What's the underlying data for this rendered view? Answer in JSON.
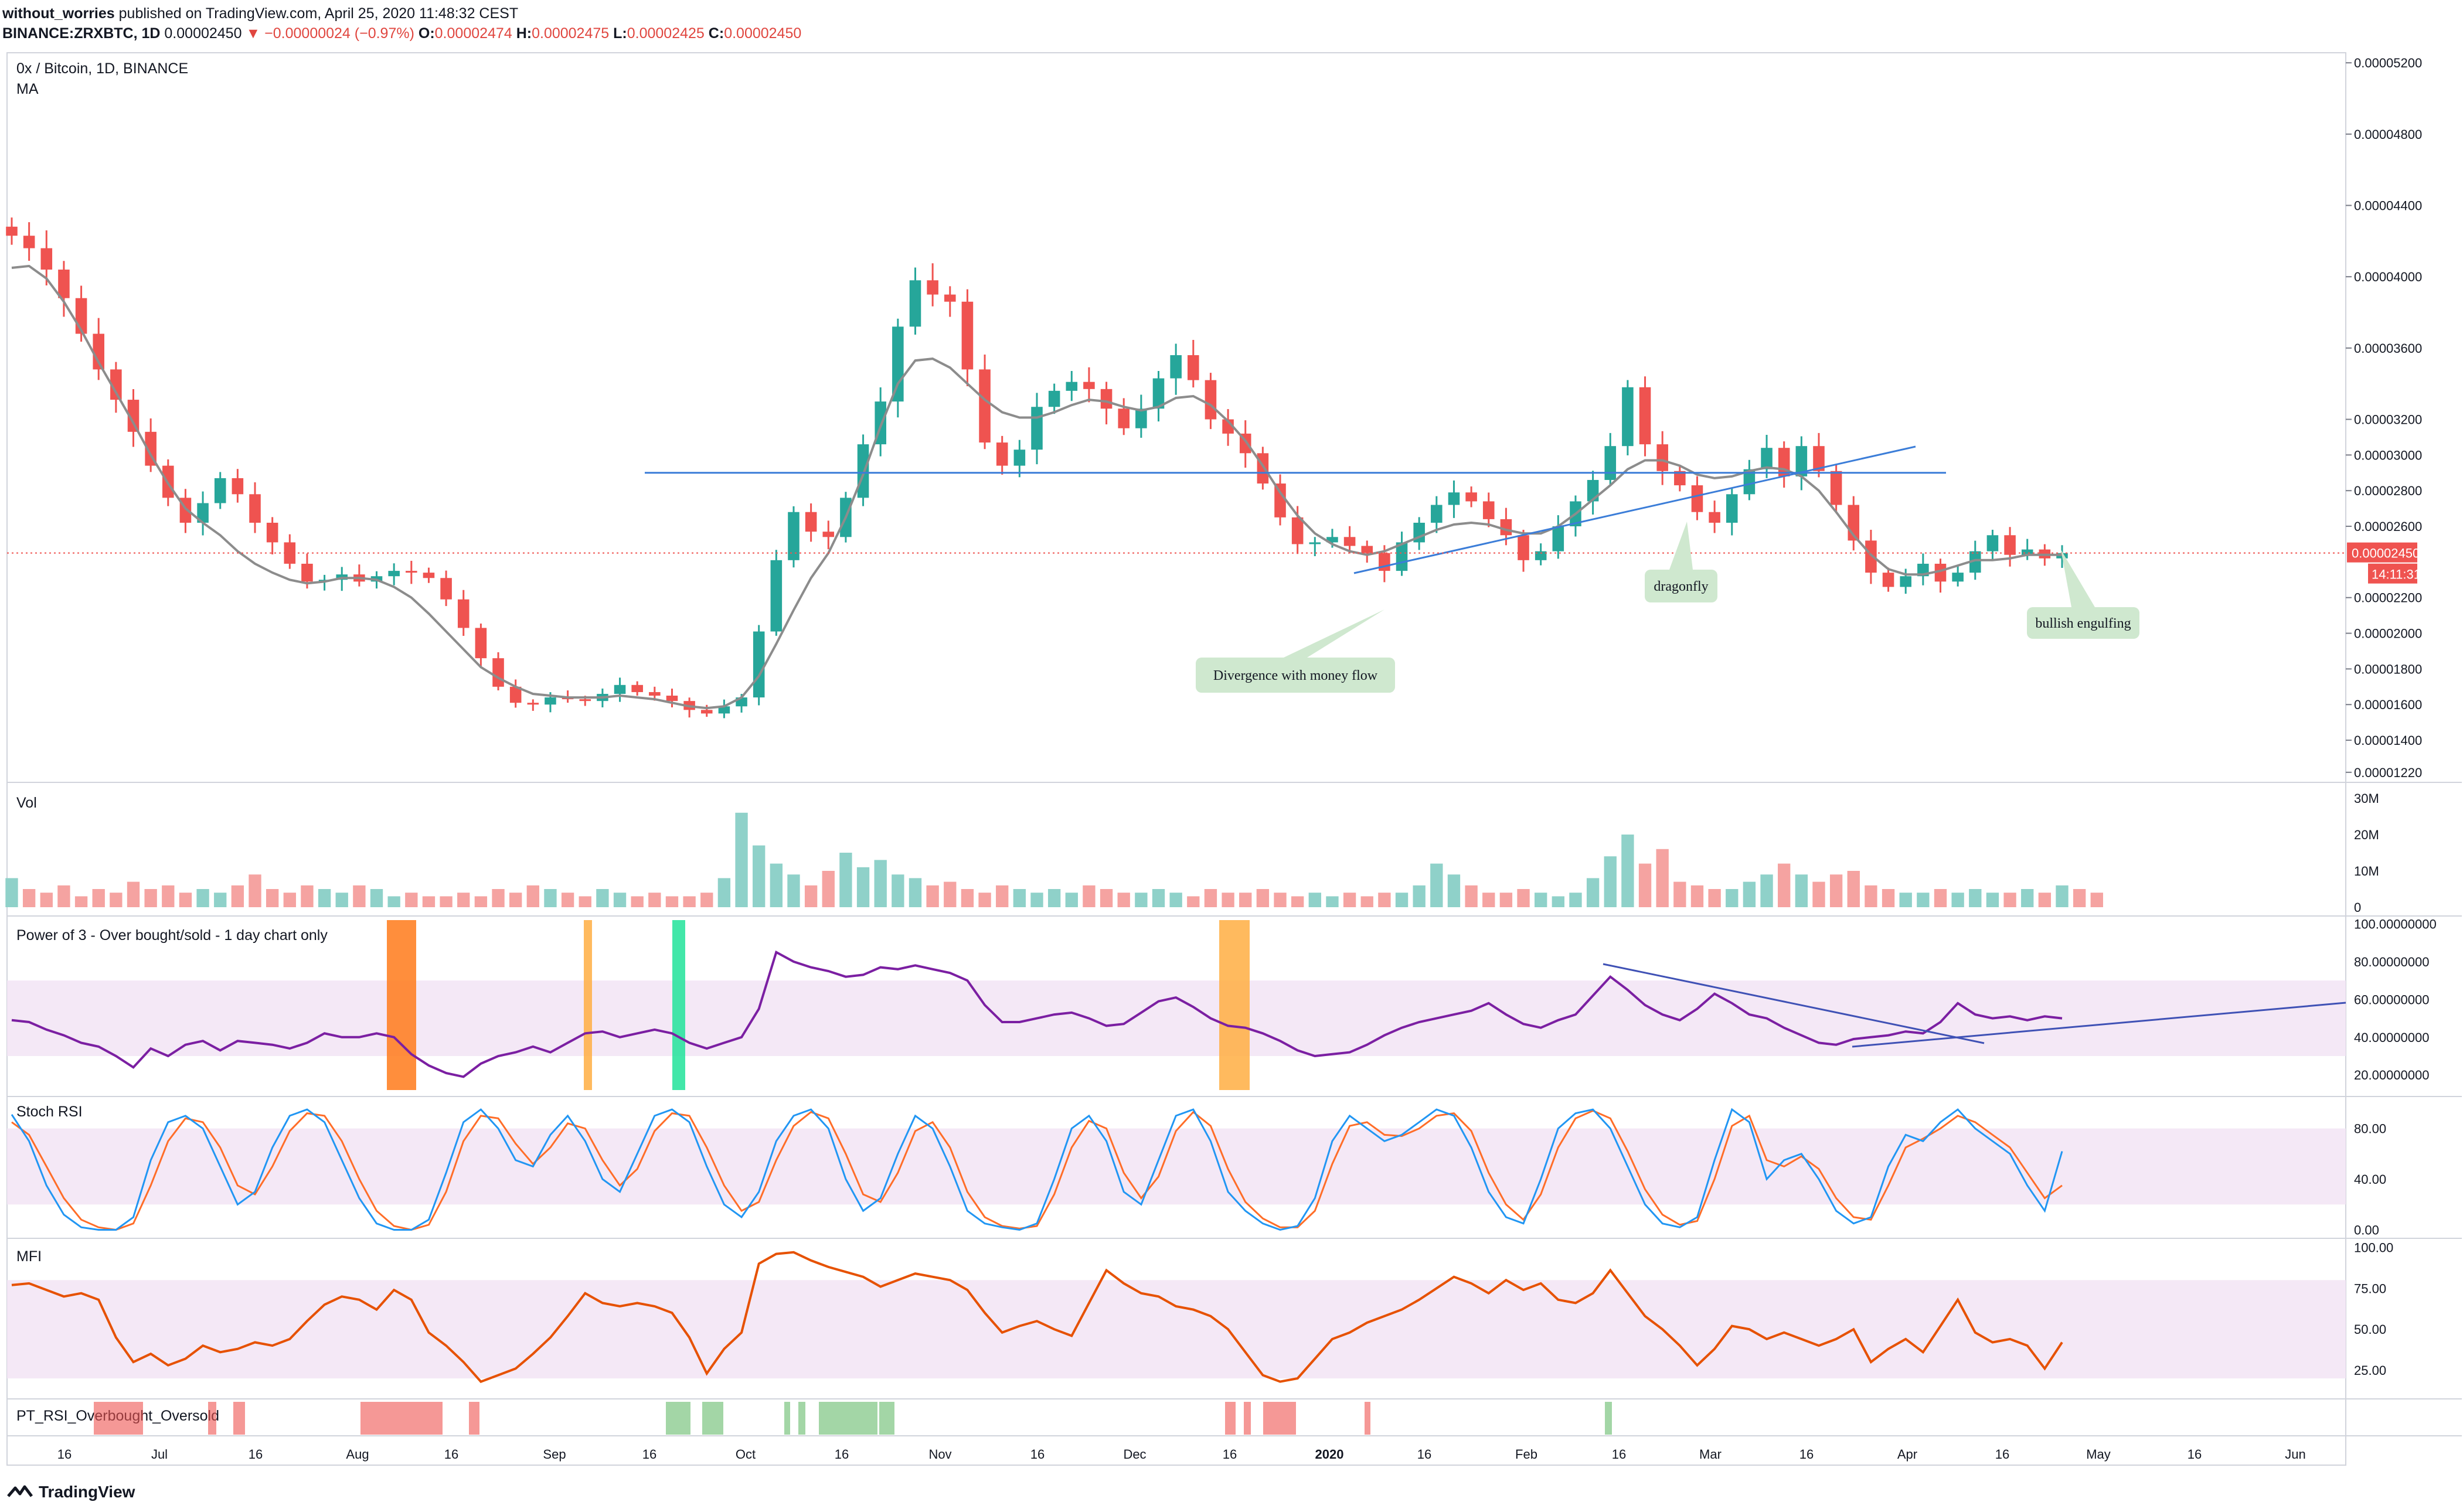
{
  "header": {
    "author": "without_worries",
    "published": "published on TradingView.com, April 25, 2020 11:48:32 CEST",
    "symbol": "BINANCE:ZRXBTC, 1D",
    "last": "0.00002450",
    "change_arrow": "▼",
    "change": "−0.00000024 (−0.97%)",
    "o_label": "O:",
    "o_value": "0.00002474",
    "h_label": "H:",
    "h_value": "0.00002475",
    "l_label": "L:",
    "l_value": "0.00002425",
    "c_label": "C:",
    "c_value": "0.00002450"
  },
  "footer": {
    "brand": "TradingView",
    "logo_icon": "tradingview-logo-icon"
  },
  "panes": {
    "main": {
      "title": "0x / Bitcoin, 1D, BINANCE",
      "subtitle": "MA"
    },
    "volume": {
      "title": "Vol"
    },
    "power3": {
      "title": "Power of 3 - Over bought/sold - 1 day chart only"
    },
    "stoch": {
      "title": "Stoch RSI"
    },
    "mfi": {
      "title": "MFI"
    },
    "pt": {
      "title": "PT_RSI_Overbought_Oversold"
    }
  },
  "colors": {
    "up": "#26a69a",
    "up_soft": "#8fd1c9",
    "down": "#ef5350",
    "down_soft": "#f5a3a1",
    "ma": "#8c8c8c",
    "trend": "#3b7dd8",
    "power": "#7b1fa2",
    "stoch_k": "#2196f3",
    "stoch_d": "#ff6d28",
    "mfi": "#e65100",
    "band": "#f3e5f5",
    "price_line": "#ef5350",
    "annotation_bg": "#cfe8cf"
  },
  "chart_data": [
    {
      "type": "candlestick",
      "pane": "main",
      "indicators": [
        "MA"
      ],
      "ylim": [
        1.18e-05,
        5.24e-05
      ],
      "y_ticks": [
        "0.00005200",
        "0.00004800",
        "0.00004400",
        "0.00004000",
        "0.00003600",
        "0.00003200",
        "0.00003000",
        "0.00002800",
        "0.00002600",
        "0.00002200",
        "0.00002000",
        "0.00001800",
        "0.00001600",
        "0.00001400",
        "0.00001220"
      ],
      "last_price_label": "0.00002450",
      "countdown_label": "14:11:31",
      "x_labels": [
        "16",
        "Jul",
        "16",
        "Aug",
        "16",
        "Sep",
        "16",
        "Oct",
        "16",
        "Nov",
        "16",
        "Dec",
        "16",
        "2020",
        "16",
        "Feb",
        "16",
        "Mar",
        "16",
        "Apr",
        "16",
        "May",
        "16",
        "Jun"
      ],
      "close_series": [
        4.23e-05,
        4.16e-05,
        4.04e-05,
        3.88e-05,
        3.68e-05,
        3.48e-05,
        3.31e-05,
        3.13e-05,
        2.94e-05,
        2.76e-05,
        2.62e-05,
        2.73e-05,
        2.87e-05,
        2.78e-05,
        2.62e-05,
        2.51e-05,
        2.39e-05,
        2.29e-05,
        2.3e-05,
        2.33e-05,
        2.29e-05,
        2.32e-05,
        2.35e-05,
        2.34e-05,
        2.31e-05,
        2.19e-05,
        2.03e-05,
        1.86e-05,
        1.7e-05,
        1.61e-05,
        1.6e-05,
        1.64e-05,
        1.63e-05,
        1.62e-05,
        1.66e-05,
        1.71e-05,
        1.67e-05,
        1.65e-05,
        1.62e-05,
        1.57e-05,
        1.55e-05,
        1.59e-05,
        1.64e-05,
        2.01e-05,
        2.41e-05,
        2.68e-05,
        2.57e-05,
        2.54e-05,
        2.76e-05,
        3.06e-05,
        3.3e-05,
        3.72e-05,
        3.98e-05,
        3.9e-05,
        3.86e-05,
        3.48e-05,
        3.07e-05,
        2.94e-05,
        3.03e-05,
        3.27e-05,
        3.36e-05,
        3.41e-05,
        3.37e-05,
        3.26e-05,
        3.15e-05,
        3.26e-05,
        3.43e-05,
        3.56e-05,
        3.42e-05,
        3.2e-05,
        3.12e-05,
        3.01e-05,
        2.84e-05,
        2.65e-05,
        2.5e-05,
        2.51e-05,
        2.54e-05,
        2.49e-05,
        2.45e-05,
        2.35e-05,
        2.51e-05,
        2.62e-05,
        2.72e-05,
        2.79e-05,
        2.74e-05,
        2.64e-05,
        2.55e-05,
        2.41e-05,
        2.46e-05,
        2.6e-05,
        2.74e-05,
        2.86e-05,
        3.05e-05,
        3.38e-05,
        3.06e-05,
        2.91e-05,
        2.83e-05,
        2.68e-05,
        2.62e-05,
        2.78e-05,
        2.92e-05,
        3.04e-05,
        2.88e-05,
        3.05e-05,
        2.91e-05,
        2.72e-05,
        2.52e-05,
        2.34e-05,
        2.26e-05,
        2.32e-05,
        2.39e-05,
        2.29e-05,
        2.34e-05,
        2.46e-05,
        2.55e-05,
        2.44e-05,
        2.47e-05,
        2.42e-05,
        2.45e-05
      ],
      "ma_series": [
        4.05e-05,
        4.06e-05,
        3.99e-05,
        3.86e-05,
        3.7e-05,
        3.52e-05,
        3.35e-05,
        3.18e-05,
        3e-05,
        2.84e-05,
        2.7e-05,
        2.62e-05,
        2.55e-05,
        2.46e-05,
        2.39e-05,
        2.34e-05,
        2.3e-05,
        2.28e-05,
        2.29e-05,
        2.31e-05,
        2.31e-05,
        2.3e-05,
        2.26e-05,
        2.2e-05,
        2.11e-05,
        2.01e-05,
        1.91e-05,
        1.81e-05,
        1.75e-05,
        1.7e-05,
        1.66e-05,
        1.65e-05,
        1.64e-05,
        1.64e-05,
        1.64e-05,
        1.65e-05,
        1.64e-05,
        1.63e-05,
        1.61e-05,
        1.59e-05,
        1.58e-05,
        1.59e-05,
        1.64e-05,
        1.76e-05,
        1.94e-05,
        2.13e-05,
        2.31e-05,
        2.45e-05,
        2.65e-05,
        2.89e-05,
        3.16e-05,
        3.4e-05,
        3.53e-05,
        3.54e-05,
        3.49e-05,
        3.4e-05,
        3.31e-05,
        3.24e-05,
        3.21e-05,
        3.21e-05,
        3.24e-05,
        3.28e-05,
        3.31e-05,
        3.3e-05,
        3.27e-05,
        3.25e-05,
        3.27e-05,
        3.32e-05,
        3.33e-05,
        3.28e-05,
        3.19e-05,
        3.08e-05,
        2.94e-05,
        2.79e-05,
        2.66e-05,
        2.56e-05,
        2.5e-05,
        2.46e-05,
        2.44e-05,
        2.46e-05,
        2.5e-05,
        2.54e-05,
        2.58e-05,
        2.61e-05,
        2.62e-05,
        2.61e-05,
        2.58e-05,
        2.56e-05,
        2.56e-05,
        2.6e-05,
        2.67e-05,
        2.75e-05,
        2.83e-05,
        2.92e-05,
        2.97e-05,
        2.97e-05,
        2.94e-05,
        2.89e-05,
        2.87e-05,
        2.88e-05,
        2.91e-05,
        2.93e-05,
        2.92e-05,
        2.88e-05,
        2.8e-05,
        2.68e-05,
        2.55e-05,
        2.44e-05,
        2.36e-05,
        2.33e-05,
        2.33e-05,
        2.35e-05,
        2.38e-05,
        2.41e-05,
        2.41e-05,
        2.42e-05,
        2.44e-05,
        2.44e-05,
        2.44e-05
      ],
      "horizontal_level": 2.9e-05,
      "trendline": {
        "from": [
          2.26e-05,
          "Jan"
        ],
        "to": [
          2.94e-05,
          "Apr"
        ]
      },
      "annotations": [
        "Divergence with money flow",
        "dragonfly",
        "bullish engulfing"
      ]
    },
    {
      "type": "bar",
      "pane": "volume",
      "y_ticks": [
        "30M",
        "20M",
        "10M",
        "0"
      ],
      "ylim": [
        0,
        30
      ],
      "values_millions": [
        8,
        5,
        4,
        6,
        3,
        5,
        4,
        7,
        5,
        6,
        4,
        5,
        4,
        6,
        9,
        5,
        4,
        6,
        5,
        4,
        6,
        5,
        3,
        4,
        3,
        3,
        4,
        3,
        5,
        4,
        6,
        5,
        4,
        3,
        5,
        4,
        3,
        4,
        3,
        3,
        4,
        8,
        26,
        17,
        12,
        9,
        6,
        10,
        15,
        11,
        13,
        9,
        8,
        6,
        7,
        5,
        4,
        6,
        5,
        4,
        5,
        4,
        6,
        5,
        4,
        4,
        5,
        4,
        3,
        5,
        4,
        4,
        5,
        4,
        3,
        4,
        3,
        4,
        3,
        4,
        4,
        6,
        12,
        9,
        6,
        4,
        4,
        5,
        4,
        3,
        4,
        8,
        14,
        20,
        12,
        16,
        7,
        6,
        5,
        5,
        7,
        9,
        12,
        9,
        7,
        9,
        10,
        6,
        5,
        4,
        4,
        5,
        4,
        5,
        4,
        4,
        5,
        4,
        6,
        5,
        4
      ]
    },
    {
      "type": "line",
      "pane": "power3",
      "y_ticks": [
        "100.00000000",
        "80.00000000",
        "60.00000000",
        "40.00000000",
        "20.00000000"
      ],
      "ylim": [
        12,
        102
      ],
      "band": [
        30,
        70
      ],
      "values": [
        49,
        48,
        44,
        41,
        37,
        35,
        30,
        24,
        34,
        30,
        36,
        38,
        33,
        38,
        37,
        36,
        34,
        37,
        42,
        40,
        40,
        42,
        40,
        31,
        25,
        21,
        19,
        26,
        30,
        32,
        35,
        32,
        37,
        42,
        43,
        40,
        42,
        44,
        42,
        37,
        34,
        37,
        40,
        55,
        85,
        80,
        77,
        75,
        72,
        73,
        77,
        76,
        78,
        76,
        74,
        70,
        57,
        48,
        48,
        50,
        52,
        53,
        50,
        46,
        47,
        53,
        59,
        61,
        56,
        50,
        46,
        45,
        42,
        38,
        33,
        30,
        31,
        32,
        36,
        41,
        45,
        48,
        50,
        52,
        54,
        58,
        52,
        47,
        45,
        49,
        52,
        62,
        72,
        65,
        57,
        52,
        49,
        55,
        63,
        58,
        52,
        50,
        45,
        41,
        37,
        36,
        39,
        40,
        41,
        43,
        42,
        48,
        58,
        52,
        50,
        51,
        49,
        51,
        50
      ],
      "shaded_columns": [
        "Aug (orange)",
        "Sep (orange)",
        "Sep end (green)",
        "mid-Dec (orange)"
      ]
    },
    {
      "type": "line",
      "pane": "stoch",
      "y_ticks": [
        "80.00",
        "40.00",
        "0.00"
      ],
      "ylim": [
        -3,
        102
      ],
      "band": [
        20,
        80
      ],
      "series": [
        {
          "name": "K",
          "values": [
            91,
            70,
            35,
            12,
            2,
            0,
            0,
            10,
            55,
            85,
            90,
            80,
            50,
            20,
            30,
            65,
            90,
            95,
            85,
            55,
            25,
            5,
            0,
            0,
            8,
            45,
            85,
            95,
            80,
            55,
            50,
            75,
            90,
            70,
            40,
            30,
            60,
            90,
            95,
            85,
            50,
            20,
            10,
            30,
            70,
            90,
            95,
            80,
            40,
            15,
            25,
            60,
            90,
            80,
            50,
            15,
            5,
            2,
            0,
            5,
            40,
            80,
            90,
            70,
            30,
            20,
            55,
            90,
            95,
            70,
            30,
            15,
            5,
            0,
            3,
            25,
            70,
            90,
            80,
            70,
            75,
            85,
            95,
            90,
            65,
            30,
            10,
            5,
            40,
            80,
            92,
            95,
            80,
            50,
            20,
            5,
            2,
            10,
            55,
            95,
            85,
            40,
            55,
            60,
            40,
            15,
            5,
            10,
            50,
            75,
            70,
            85,
            95,
            80,
            70,
            60,
            35,
            15,
            62
          ]
        },
        {
          "name": "D",
          "values": [
            85,
            75,
            50,
            25,
            8,
            2,
            0,
            5,
            35,
            70,
            88,
            85,
            65,
            35,
            28,
            50,
            78,
            92,
            90,
            70,
            40,
            15,
            3,
            0,
            4,
            30,
            70,
            90,
            88,
            68,
            52,
            65,
            84,
            80,
            55,
            35,
            48,
            78,
            92,
            90,
            65,
            35,
            15,
            22,
            55,
            82,
            93,
            88,
            60,
            28,
            22,
            45,
            78,
            85,
            65,
            30,
            10,
            3,
            1,
            3,
            28,
            65,
            86,
            80,
            45,
            25,
            42,
            78,
            93,
            82,
            48,
            22,
            9,
            2,
            2,
            15,
            52,
            82,
            85,
            75,
            74,
            80,
            90,
            92,
            78,
            45,
            20,
            8,
            28,
            65,
            88,
            94,
            88,
            62,
            32,
            12,
            4,
            7,
            40,
            82,
            90,
            55,
            50,
            58,
            48,
            25,
            10,
            8,
            35,
            65,
            72,
            80,
            90,
            85,
            75,
            65,
            45,
            25,
            35
          ]
        }
      ]
    },
    {
      "type": "line",
      "pane": "mfi",
      "y_ticks": [
        "100.00",
        "75.00",
        "50.00",
        "25.00"
      ],
      "ylim": [
        10,
        103
      ],
      "band": [
        20,
        80
      ],
      "values": [
        77,
        78,
        74,
        70,
        72,
        68,
        45,
        30,
        35,
        28,
        32,
        40,
        36,
        38,
        42,
        40,
        44,
        55,
        65,
        70,
        68,
        62,
        74,
        68,
        48,
        40,
        30,
        18,
        22,
        26,
        35,
        45,
        58,
        72,
        66,
        64,
        66,
        64,
        60,
        45,
        23,
        38,
        48,
        90,
        96,
        97,
        92,
        88,
        85,
        82,
        76,
        80,
        84,
        82,
        80,
        74,
        60,
        48,
        52,
        55,
        50,
        46,
        66,
        86,
        78,
        72,
        70,
        64,
        62,
        58,
        50,
        36,
        22,
        18,
        20,
        32,
        44,
        48,
        54,
        58,
        62,
        68,
        75,
        82,
        78,
        72,
        80,
        74,
        78,
        68,
        66,
        72,
        86,
        72,
        58,
        50,
        40,
        28,
        38,
        52,
        50,
        44,
        48,
        44,
        40,
        44,
        50,
        30,
        38,
        44,
        36,
        52,
        68,
        48,
        42,
        44,
        40,
        26,
        42
      ]
    },
    {
      "type": "bar",
      "pane": "pt",
      "segments": [
        {
          "status": "overbought",
          "color": "#ef5350",
          "from": "Jun 20",
          "to": "Jul 1"
        },
        {
          "status": "overbought",
          "color": "#ef5350",
          "from": "Jul 9",
          "to": "Jul 16"
        },
        {
          "status": "overbought",
          "color": "#ef5350",
          "from": "Aug 2",
          "to": "Aug 16"
        },
        {
          "status": "overbought",
          "color": "#ef5350",
          "from": "Aug 18",
          "to": "Aug 20"
        },
        {
          "status": "oversold",
          "color": "#66bb6a",
          "from": "Sep 18",
          "to": "Sep 24"
        },
        {
          "status": "oversold",
          "color": "#66bb6a",
          "from": "Oct 3",
          "to": "Oct 16"
        },
        {
          "status": "overbought",
          "color": "#ef5350",
          "from": "Dec 15",
          "to": "Dec 27"
        },
        {
          "status": "overbought",
          "color": "#ef5350",
          "from": "Jan 7",
          "to": "Jan 8"
        },
        {
          "status": "oversold",
          "color": "#66bb6a",
          "from": "Feb 12",
          "to": "Feb 13"
        }
      ]
    }
  ]
}
